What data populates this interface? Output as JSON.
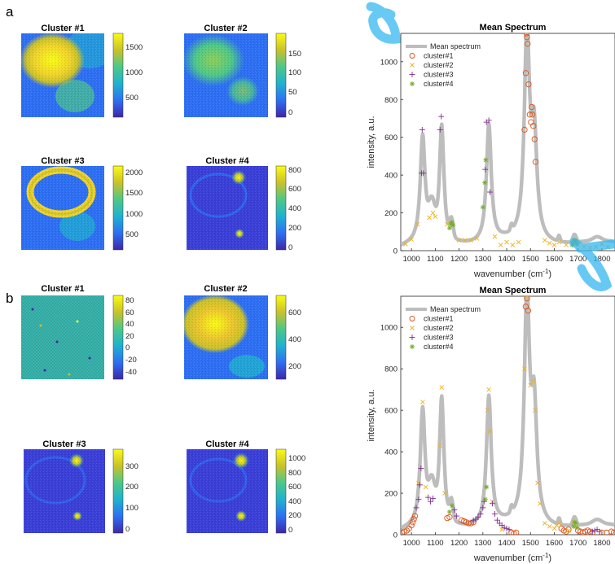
{
  "panels": [
    {
      "letter": "a",
      "heatmaps": [
        {
          "title": "Cluster #1",
          "ticks": [
            "1500",
            "1000",
            "500"
          ]
        },
        {
          "title": "Cluster #2",
          "ticks": [
            "150",
            "100",
            "50",
            "0"
          ]
        },
        {
          "title": "Cluster #3",
          "ticks": [
            "2000",
            "1500",
            "1000",
            "500"
          ]
        },
        {
          "title": "Cluster #4",
          "ticks": [
            "800",
            "600",
            "400",
            "200",
            "0"
          ]
        }
      ]
    },
    {
      "letter": "b",
      "heatmaps": [
        {
          "title": "Cluster #1",
          "ticks": [
            "80",
            "60",
            "40",
            "20",
            "0",
            "-20",
            "-40"
          ]
        },
        {
          "title": "Cluster #2",
          "ticks": [
            "600",
            "400",
            "200"
          ]
        },
        {
          "title": "Cluster #3",
          "ticks": [
            "300",
            "200",
            "100",
            "0"
          ]
        },
        {
          "title": "Cluster #4",
          "ticks": [
            "1000",
            "800",
            "600",
            "400",
            "200",
            "0"
          ]
        }
      ]
    }
  ],
  "colors": {
    "mean": "#bdbdbd",
    "cluster1": "#d95319",
    "cluster2": "#edb120",
    "cluster3": "#7e2f8e",
    "cluster4": "#77ac30",
    "colormap": [
      "#3e26a8",
      "#2d6ff4",
      "#1eb2cf",
      "#4cc889",
      "#c9c129",
      "#f9fb15"
    ]
  },
  "chart_data": [
    {
      "type": "line",
      "title": "Mean Spectrum",
      "xlabel": "wavenumber (cm-1)",
      "xlabel_main": "wavenumber (cm",
      "xlabel_sup": "-1",
      "xlabel_close": ")",
      "ylabel": "intensity, a.u.",
      "xlim": [
        955,
        1855
      ],
      "ylim": [
        0,
        1150
      ],
      "xticks": [
        "1000",
        "1100",
        "1200",
        "1300",
        "1400",
        "1500",
        "1600",
        "1700",
        "1800"
      ],
      "yticks": [
        "0",
        "200",
        "400",
        "600",
        "800",
        "1000"
      ],
      "legend": {
        "position": "top-left",
        "entries": [
          "Mean spectrum",
          "cluster#1",
          "cluster#2",
          "cluster#3",
          "cluster#4"
        ]
      },
      "peaks": [
        {
          "x": 1047,
          "height": 560,
          "width": 12
        },
        {
          "x": 1127,
          "height": 610,
          "width": 11
        },
        {
          "x": 1325,
          "height": 620,
          "width": 12
        },
        {
          "x": 1485,
          "height": 1080,
          "width": 13
        },
        {
          "x": 1515,
          "height": 540,
          "width": 14
        }
      ],
      "series": [
        {
          "name": "Mean spectrum",
          "x": [
            955,
            990,
            1020,
            1035,
            1047,
            1060,
            1080,
            1095,
            1110,
            1120,
            1127,
            1140,
            1160,
            1175,
            1200,
            1250,
            1290,
            1310,
            1325,
            1340,
            1380,
            1400,
            1420,
            1450,
            1470,
            1485,
            1500,
            1515,
            1530,
            1560,
            1600,
            1620,
            1650,
            1680,
            1700,
            1750,
            1800,
            1855
          ],
          "y": [
            30,
            50,
            110,
            300,
            640,
            230,
            165,
            220,
            150,
            430,
            710,
            200,
            120,
            150,
            60,
            55,
            70,
            170,
            700,
            160,
            25,
            50,
            25,
            45,
            200,
            1150,
            720,
            740,
            250,
            55,
            30,
            50,
            25,
            55,
            30,
            15,
            35,
            15
          ]
        },
        {
          "name": "cluster#1",
          "x": [
            1475,
            1480,
            1483,
            1485,
            1488,
            1492,
            1497,
            1502,
            1505,
            1508,
            1512,
            1517,
            1521
          ],
          "y": [
            640,
            940,
            1150,
            1130,
            1095,
            880,
            720,
            680,
            760,
            720,
            660,
            590,
            470
          ]
        },
        {
          "name": "cluster#2",
          "x": [
            975,
            1000,
            1025,
            1075,
            1090,
            1100,
            1150,
            1200,
            1225,
            1250,
            1275,
            1350,
            1375,
            1400,
            1425,
            1450,
            1560,
            1580,
            1600,
            1620,
            1650,
            1700,
            1725,
            1750,
            1775,
            1800,
            1825
          ],
          "y": [
            35,
            60,
            140,
            175,
            200,
            180,
            140,
            55,
            55,
            55,
            65,
            75,
            30,
            45,
            30,
            45,
            55,
            40,
            30,
            45,
            30,
            30,
            20,
            15,
            20,
            35,
            20
          ]
        },
        {
          "name": "cluster#3",
          "x": [
            1042,
            1045,
            1050,
            1120,
            1125,
            1310,
            1315,
            1325,
            1330
          ],
          "y": [
            410,
            640,
            410,
            640,
            710,
            430,
            680,
            690,
            310
          ]
        },
        {
          "name": "cluster#4",
          "x": [
            1160,
            1165,
            1170,
            1175,
            1300,
            1308,
            1312,
            1675,
            1680,
            1685,
            1690,
            1695
          ],
          "y": [
            120,
            140,
            150,
            135,
            230,
            360,
            480,
            30,
            40,
            55,
            50,
            35
          ]
        }
      ]
    },
    {
      "type": "line",
      "title": "Mean Spectrum",
      "xlabel": "wavenumber (cm-1)",
      "xlabel_main": "wavenumber (cm",
      "xlabel_sup": "-1",
      "xlabel_close": ")",
      "ylabel": "intensity, a.u.",
      "xlim": [
        955,
        1855
      ],
      "ylim": [
        0,
        1150
      ],
      "xticks": [
        "1000",
        "1100",
        "1200",
        "1300",
        "1400",
        "1500",
        "1600",
        "1700",
        "1800"
      ],
      "yticks": [
        "0",
        "200",
        "400",
        "600",
        "800",
        "1000"
      ],
      "legend": {
        "position": "top-left",
        "entries": [
          "Mean spectrum",
          "cluster#1",
          "cluster#2",
          "cluster#3",
          "cluster#4"
        ]
      },
      "peaks": [
        {
          "x": 1047,
          "height": 560,
          "width": 12
        },
        {
          "x": 1127,
          "height": 610,
          "width": 11
        },
        {
          "x": 1325,
          "height": 620,
          "width": 12
        },
        {
          "x": 1485,
          "height": 1080,
          "width": 13
        },
        {
          "x": 1515,
          "height": 540,
          "width": 14
        }
      ],
      "series": [
        {
          "name": "Mean spectrum",
          "x": [
            955,
            990,
            1020,
            1035,
            1047,
            1060,
            1080,
            1095,
            1110,
            1120,
            1127,
            1140,
            1160,
            1175,
            1200,
            1250,
            1290,
            1310,
            1325,
            1340,
            1380,
            1400,
            1420,
            1450,
            1470,
            1485,
            1500,
            1515,
            1530,
            1560,
            1600,
            1620,
            1650,
            1680,
            1700,
            1750,
            1800,
            1855
          ],
          "y": [
            30,
            50,
            110,
            300,
            640,
            230,
            165,
            220,
            150,
            430,
            710,
            200,
            120,
            150,
            60,
            55,
            70,
            170,
            700,
            160,
            25,
            50,
            25,
            45,
            200,
            1150,
            720,
            740,
            250,
            55,
            30,
            50,
            25,
            55,
            30,
            15,
            35,
            15
          ]
        },
        {
          "name": "cluster#1",
          "x": [
            960,
            970,
            980,
            990,
            1000,
            1005,
            1010,
            1015,
            1150,
            1160,
            1210,
            1220,
            1230,
            1240,
            1250,
            1260,
            1420,
            1430,
            1440,
            1480,
            1485,
            1490,
            1630,
            1640,
            1650,
            1660,
            1700,
            1710,
            1720,
            1730,
            1740,
            1750,
            1760,
            1800,
            1820,
            1840,
            1850
          ],
          "y": [
            10,
            15,
            20,
            30,
            45,
            60,
            75,
            90,
            80,
            85,
            70,
            65,
            60,
            55,
            55,
            60,
            10,
            5,
            10,
            1100,
            1140,
            1080,
            30,
            20,
            15,
            25,
            20,
            15,
            10,
            15,
            20,
            15,
            10,
            10,
            10,
            15,
            10
          ]
        },
        {
          "name": "cluster#2",
          "x": [
            1030,
            1047,
            1060,
            1120,
            1127,
            1140,
            1320,
            1325,
            1330,
            1340,
            1380,
            1475,
            1485,
            1500,
            1510,
            1520,
            1530,
            1540,
            1560,
            1580,
            1600,
            1610,
            1620,
            1660,
            1680,
            1690
          ],
          "y": [
            250,
            640,
            230,
            430,
            710,
            200,
            600,
            700,
            500,
            160,
            25,
            800,
            1150,
            720,
            740,
            600,
            250,
            150,
            55,
            40,
            30,
            45,
            55,
            20,
            60,
            40
          ]
        },
        {
          "name": "cluster#3",
          "x": [
            1020,
            1030,
            1035,
            1040,
            1070,
            1080,
            1090,
            1180,
            1190,
            1260,
            1270,
            1280,
            1290,
            1300,
            1305,
            1340,
            1350,
            1360,
            1370,
            1380,
            1390,
            1400,
            1410,
            1760,
            1770,
            1780,
            1790
          ],
          "y": [
            130,
            170,
            240,
            320,
            180,
            160,
            175,
            120,
            90,
            70,
            75,
            85,
            100,
            130,
            160,
            150,
            100,
            70,
            55,
            45,
            35,
            30,
            25,
            15,
            20,
            25,
            15
          ]
        },
        {
          "name": "cluster#4",
          "x": [
            1160,
            1170,
            1310,
            1315,
            1680,
            1685,
            1690,
            1695
          ],
          "y": [
            110,
            140,
            170,
            230,
            40,
            60,
            55,
            35
          ]
        }
      ]
    }
  ]
}
